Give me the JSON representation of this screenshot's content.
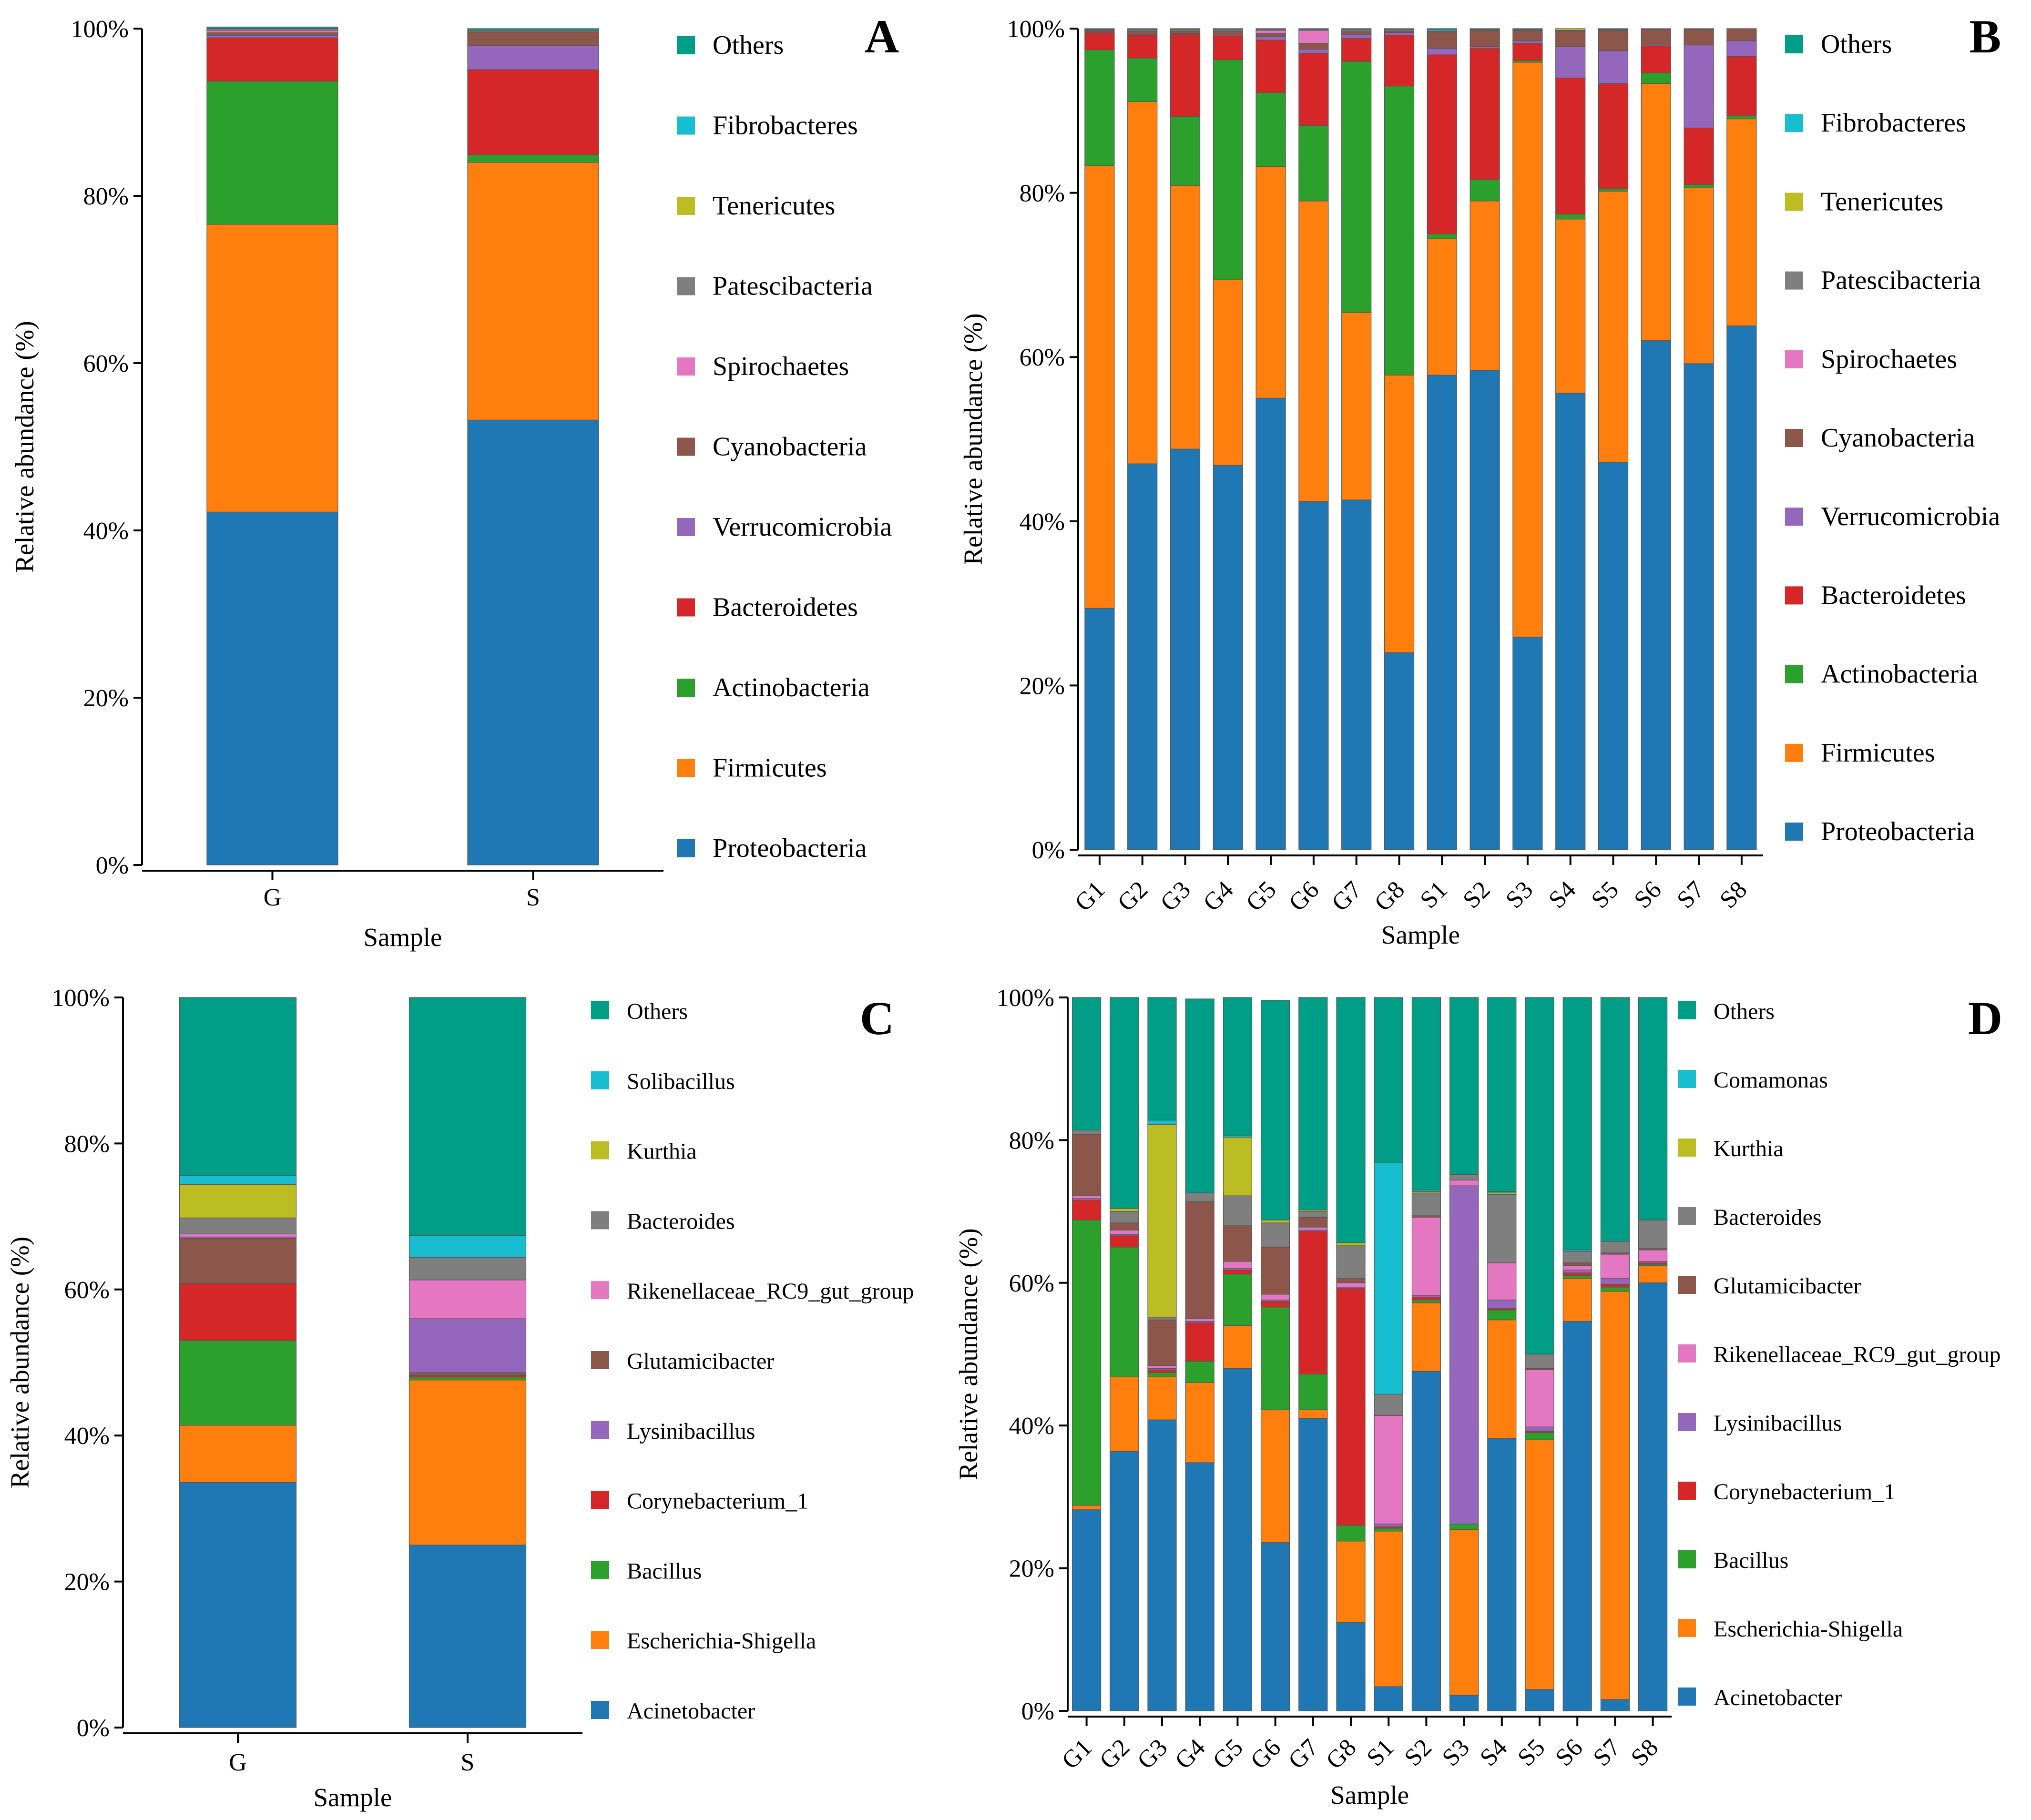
{
  "colors": {
    "Others": "#009e86",
    "Fibrobacteres": "#17becf",
    "Tenericutes": "#bcbd22",
    "Patescibacteria": "#7f7f7f",
    "Spirochaetes": "#e377c2",
    "Cyanobacteria": "#8c564b",
    "Verrucomicrobia": "#9467bd",
    "Bacteroidetes": "#d62728",
    "Actinobacteria": "#2ca02c",
    "Firmicutes": "#ff7f0e",
    "Proteobacteria": "#1f77b4",
    "Solibacillus": "#17becf",
    "Comamonas": "#17becf",
    "Kurthia": "#bcbd22",
    "Bacteroides": "#7f7f7f",
    "Rikenellaceae_RC9_gut_group": "#e377c2",
    "Glutamicibacter": "#8c564b",
    "Lysinibacillus": "#9467bd",
    "Corynebacterium_1": "#d62728",
    "Bacillus": "#2ca02c",
    "Escherichia-Shigella": "#ff7f0e",
    "Acinetobacter": "#1f77b4"
  },
  "chart_data": [
    {
      "panel": "A",
      "type": "stacked-bar",
      "xlabel": "Sample",
      "ylabel": "Relative abundance (%)",
      "yticks": [
        "0%",
        "20%",
        "40%",
        "60%",
        "80%",
        "100%"
      ],
      "ylim": [
        0,
        100
      ],
      "categories": [
        "G",
        "S"
      ],
      "legend": [
        "Others",
        "Fibrobacteres",
        "Tenericutes",
        "Patescibacteria",
        "Spirochaetes",
        "Cyanobacteria",
        "Verrucomicrobia",
        "Bacteroidetes",
        "Actinobacteria",
        "Firmicutes",
        "Proteobacteria"
      ],
      "series": [
        {
          "name": "Proteobacteria",
          "values": [
            42.2,
            53.2
          ]
        },
        {
          "name": "Firmicutes",
          "values": [
            34.4,
            30.8
          ]
        },
        {
          "name": "Actinobacteria",
          "values": [
            17.1,
            0.9
          ]
        },
        {
          "name": "Bacteroidetes",
          "values": [
            5.2,
            10.2
          ]
        },
        {
          "name": "Verrucomicrobia",
          "values": [
            0.3,
            2.9
          ]
        },
        {
          "name": "Cyanobacteria",
          "values": [
            0.3,
            1.6
          ]
        },
        {
          "name": "Spirochaetes",
          "values": [
            0.3,
            0.0
          ]
        },
        {
          "name": "Patescibacteria",
          "values": [
            0.2,
            0.2
          ]
        },
        {
          "name": "Tenericutes",
          "values": [
            0.0,
            0.0
          ]
        },
        {
          "name": "Fibrobacteres",
          "values": [
            0.0,
            0.0
          ]
        },
        {
          "name": "Others",
          "values": [
            0.2,
            0.2
          ]
        }
      ]
    },
    {
      "panel": "B",
      "type": "stacked-bar",
      "xlabel": "Sample",
      "ylabel": "Relative abundance (%)",
      "yticks": [
        "0%",
        "20%",
        "40%",
        "60%",
        "80%",
        "100%"
      ],
      "ylim": [
        0,
        100
      ],
      "categories": [
        "G1",
        "G2",
        "G3",
        "G4",
        "G5",
        "G6",
        "G7",
        "G8",
        "S1",
        "S2",
        "S3",
        "S4",
        "S5",
        "S6",
        "S7",
        "S8"
      ],
      "legend": [
        "Others",
        "Fibrobacteres",
        "Tenericutes",
        "Patescibacteria",
        "Spirochaetes",
        "Cyanobacteria",
        "Verrucomicrobia",
        "Bacteroidetes",
        "Actinobacteria",
        "Firmicutes",
        "Proteobacteria"
      ],
      "series": [
        {
          "name": "Proteobacteria",
          "values": [
            29.4,
            47.0,
            48.8,
            46.8,
            55.0,
            42.4,
            42.6,
            24.0,
            57.8,
            58.4,
            25.9,
            55.6,
            47.2,
            62.0,
            59.2,
            63.8
          ]
        },
        {
          "name": "Firmicutes",
          "values": [
            53.9,
            44.1,
            32.1,
            22.6,
            28.2,
            36.6,
            22.8,
            33.8,
            16.6,
            20.6,
            70.0,
            21.2,
            33.0,
            31.3,
            21.4,
            25.2
          ]
        },
        {
          "name": "Actinobacteria",
          "values": [
            14.1,
            5.3,
            8.4,
            26.8,
            9.0,
            9.2,
            30.6,
            35.2,
            0.6,
            2.6,
            0.2,
            0.6,
            0.3,
            1.3,
            0.4,
            0.4
          ]
        },
        {
          "name": "Bacteroidetes",
          "values": [
            2.1,
            2.8,
            10.0,
            2.9,
            6.4,
            8.8,
            2.8,
            6.2,
            21.8,
            16.0,
            2.1,
            16.6,
            12.8,
            3.3,
            6.9,
            7.2
          ]
        },
        {
          "name": "Verrucomicrobia",
          "values": [
            0.1,
            0.1,
            0.1,
            0.1,
            0.4,
            0.5,
            0.5,
            0.3,
            0.8,
            0.2,
            0.3,
            3.8,
            4.0,
            0.1,
            10.1,
            1.9
          ]
        },
        {
          "name": "Cyanobacteria",
          "values": [
            0.2,
            0.4,
            0.3,
            0.5,
            0.4,
            0.7,
            0.3,
            0.2,
            2.0,
            2.0,
            1.3,
            1.9,
            2.5,
            1.9,
            1.9,
            1.5
          ]
        },
        {
          "name": "Spirochaetes",
          "values": [
            0.0,
            0.0,
            0.0,
            0.0,
            0.4,
            1.6,
            0.1,
            0.0,
            0.0,
            0.0,
            0.0,
            0.0,
            0.0,
            0.0,
            0.0,
            0.0
          ]
        },
        {
          "name": "Patescibacteria",
          "values": [
            0.1,
            0.2,
            0.2,
            0.2,
            0.1,
            0.1,
            0.2,
            0.2,
            0.1,
            0.1,
            0.1,
            0.1,
            0.1,
            0.1,
            0.1,
            0.0
          ]
        },
        {
          "name": "Tenericutes",
          "values": [
            0.0,
            0.0,
            0.0,
            0.0,
            0.0,
            0.0,
            0.0,
            0.0,
            0.0,
            0.0,
            0.0,
            0.2,
            0.0,
            0.0,
            0.0,
            0.0
          ]
        },
        {
          "name": "Fibrobacteres",
          "values": [
            0.0,
            0.0,
            0.0,
            0.0,
            0.0,
            0.0,
            0.0,
            0.0,
            0.2,
            0.0,
            0.0,
            0.0,
            0.0,
            0.0,
            0.0,
            0.0
          ]
        },
        {
          "name": "Others",
          "values": [
            0.1,
            0.1,
            0.1,
            0.1,
            0.1,
            0.1,
            0.1,
            0.1,
            0.1,
            0.1,
            0.1,
            0.0,
            0.1,
            0.0,
            0.0,
            0.0
          ]
        }
      ]
    },
    {
      "panel": "C",
      "type": "stacked-bar",
      "xlabel": "Sample",
      "ylabel": "Relative abundance (%)",
      "yticks": [
        "0%",
        "20%",
        "40%",
        "60%",
        "80%",
        "100%"
      ],
      "ylim": [
        0,
        100
      ],
      "categories": [
        "G",
        "S"
      ],
      "legend": [
        "Others",
        "Solibacillus",
        "Kurthia",
        "Bacteroides",
        "Rikenellaceae_RC9_gut_group",
        "Glutamicibacter",
        "Lysinibacillus",
        "Corynebacterium_1",
        "Bacillus",
        "Escherichia-Shigella",
        "Acinetobacter"
      ],
      "series": [
        {
          "name": "Acinetobacter",
          "values": [
            33.6,
            25.0
          ]
        },
        {
          "name": "Escherichia-Shigella",
          "values": [
            7.8,
            22.6
          ]
        },
        {
          "name": "Bacillus",
          "values": [
            11.6,
            0.4
          ]
        },
        {
          "name": "Corynebacterium_1",
          "values": [
            7.8,
            0.2
          ]
        },
        {
          "name": "Glutamicibacter",
          "values": [
            6.2,
            0.4
          ]
        },
        {
          "name": "Lysinibacillus",
          "values": [
            0.2,
            7.4
          ]
        },
        {
          "name": "Rikenellaceae_RC9_gut_group",
          "values": [
            0.4,
            5.3
          ]
        },
        {
          "name": "Bacteroides",
          "values": [
            2.2,
            3.1
          ]
        },
        {
          "name": "Kurthia",
          "values": [
            4.6,
            0.0
          ]
        },
        {
          "name": "Solibacillus",
          "values": [
            1.2,
            3.0
          ]
        },
        {
          "name": "Others",
          "values": [
            24.4,
            32.6
          ]
        }
      ]
    },
    {
      "panel": "D",
      "type": "stacked-bar",
      "xlabel": "Sample",
      "ylabel": "Relative abundance (%)",
      "yticks": [
        "0%",
        "20%",
        "40%",
        "60%",
        "80%",
        "100%"
      ],
      "ylim": [
        0,
        100
      ],
      "categories": [
        "G1",
        "G2",
        "G3",
        "G4",
        "G5",
        "G6",
        "G7",
        "G8",
        "S1",
        "S2",
        "S3",
        "S4",
        "S5",
        "S6",
        "S7",
        "S8"
      ],
      "legend": [
        "Others",
        "Comamonas",
        "Kurthia",
        "Bacteroides",
        "Glutamicibacter",
        "Rikenellaceae_RC9_gut_group",
        "Lysinibacillus",
        "Corynebacterium_1",
        "Bacillus",
        "Escherichia-Shigella",
        "Acinetobacter"
      ],
      "series": [
        {
          "name": "Acinetobacter",
          "values": [
            28.2,
            36.4,
            40.8,
            34.8,
            48.0,
            23.6,
            41.0,
            12.4,
            3.4,
            47.6,
            2.2,
            38.2,
            3.0,
            54.6,
            1.6,
            60.0
          ]
        },
        {
          "name": "Escherichia-Shigella",
          "values": [
            0.6,
            10.4,
            6.0,
            11.2,
            6.0,
            18.6,
            1.2,
            11.4,
            21.8,
            9.6,
            23.2,
            16.6,
            35.0,
            6.0,
            57.2,
            2.4
          ]
        },
        {
          "name": "Bacillus",
          "values": [
            40.0,
            18.2,
            0.6,
            3.0,
            7.2,
            14.4,
            5.0,
            2.2,
            0.4,
            0.4,
            0.8,
            1.4,
            1.0,
            0.4,
            0.6,
            0.2
          ]
        },
        {
          "name": "Corynebacterium_1",
          "values": [
            2.8,
            1.6,
            0.4,
            5.4,
            0.6,
            0.8,
            20.0,
            33.2,
            0.2,
            0.4,
            0.0,
            0.2,
            0.2,
            0.4,
            0.4,
            0.2
          ]
        },
        {
          "name": "Lysinibacillus",
          "values": [
            0.2,
            0.2,
            0.2,
            0.2,
            0.2,
            0.2,
            0.2,
            0.2,
            0.4,
            0.2,
            47.4,
            1.2,
            0.6,
            0.4,
            0.8,
            0.2
          ]
        },
        {
          "name": "Rikenellaceae_RC9_gut_group",
          "values": [
            0.4,
            0.6,
            0.4,
            0.4,
            1.0,
            0.8,
            0.4,
            0.6,
            15.2,
            11.0,
            0.8,
            5.2,
            8.0,
            0.6,
            3.4,
            1.6
          ]
        },
        {
          "name": "Glutamicibacter",
          "values": [
            8.6,
            1.0,
            6.4,
            16.4,
            5.0,
            6.6,
            1.4,
            0.6,
            0.0,
            0.2,
            0.0,
            0.0,
            0.2,
            0.4,
            0.2,
            0.2
          ]
        },
        {
          "name": "Bacteroides",
          "values": [
            0.6,
            1.6,
            0.4,
            1.2,
            4.2,
            3.4,
            0.8,
            4.6,
            3.0,
            3.2,
            0.8,
            9.6,
            2.0,
            1.6,
            1.6,
            4.0
          ]
        },
        {
          "name": "Kurthia",
          "values": [
            0.0,
            0.4,
            27.0,
            0.0,
            8.2,
            0.4,
            0.2,
            0.4,
            0.0,
            0.2,
            0.0,
            0.2,
            0.0,
            0.0,
            0.0,
            0.0
          ]
        },
        {
          "name": "Comamonas",
          "values": [
            0.0,
            0.0,
            0.6,
            0.0,
            0.2,
            0.0,
            0.0,
            0.0,
            32.4,
            0.2,
            0.0,
            0.2,
            0.0,
            0.2,
            0.0,
            0.0
          ]
        },
        {
          "name": "Others",
          "values": [
            18.6,
            29.6,
            17.2,
            27.2,
            19.4,
            30.8,
            29.8,
            34.4,
            23.2,
            27.0,
            24.8,
            27.2,
            50.0,
            35.4,
            34.2,
            31.2
          ]
        }
      ]
    }
  ]
}
